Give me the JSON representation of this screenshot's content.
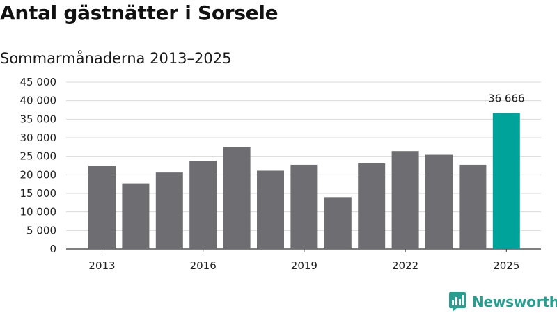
{
  "title": "Antal gästnätter i Sorsele",
  "subtitle": "Sommarmånaderna 2013–2025",
  "brand": {
    "name": "Newsworthy",
    "color": "#2a9d8f",
    "icon": "bar-chart-speech-bubble-icon"
  },
  "colors": {
    "bar": "#6e6d72",
    "highlight": "#00a39a",
    "grid": "#d9d9d9",
    "axis": "#333333"
  },
  "chart_data": {
    "type": "bar",
    "categories": [
      "2013",
      "2014",
      "2015",
      "2016",
      "2017",
      "2018",
      "2019",
      "2020",
      "2021",
      "2022",
      "2023",
      "2024",
      "2025"
    ],
    "values": [
      22400,
      17700,
      20600,
      23800,
      27400,
      21100,
      22700,
      14000,
      23100,
      26400,
      25400,
      22700,
      36666
    ],
    "x_tick_labels": [
      "2013",
      "2016",
      "2019",
      "2022",
      "2025"
    ],
    "y_ticks": [
      0,
      5000,
      10000,
      15000,
      20000,
      25000,
      30000,
      35000,
      40000,
      45000
    ],
    "y_tick_labels": [
      "0",
      "5 000",
      "10 000",
      "15 000",
      "20 000",
      "25 000",
      "30 000",
      "35 000",
      "40 000",
      "45 000"
    ],
    "ylim": [
      0,
      45000
    ],
    "highlight_index": 12,
    "data_labels": [
      {
        "index": 12,
        "text": "36 666"
      }
    ],
    "grid": true,
    "legend": "none",
    "xlabel": "",
    "ylabel": ""
  }
}
